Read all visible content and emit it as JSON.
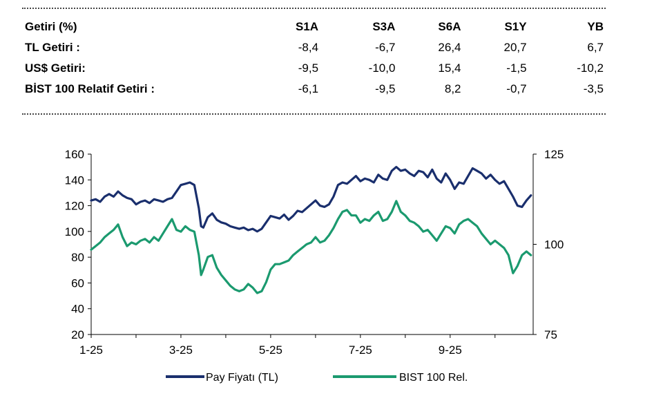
{
  "returns_table": {
    "header": [
      "Getiri (%)",
      "S1A",
      "S3A",
      "S6A",
      "S1Y",
      "YB"
    ],
    "rows": [
      {
        "label": "TL Getiri :",
        "values": [
          "-8,4",
          "-6,7",
          "26,4",
          "20,7",
          "6,7"
        ]
      },
      {
        "label": "US$ Getiri:",
        "values": [
          "-9,5",
          "-10,0",
          "15,4",
          "-1,5",
          "-10,2"
        ]
      },
      {
        "label": "BİST 100 Relatif Getiri :",
        "values": [
          "-6,1",
          "-9,5",
          "8,2",
          "-0,7",
          "-3,5"
        ]
      }
    ]
  },
  "chart_data": {
    "type": "line",
    "x_tick_labels": [
      "1-25",
      "3-25",
      "5-25",
      "7-25",
      "9-25"
    ],
    "x_range_months": [
      1,
      10.85
    ],
    "y_left": {
      "range": [
        20,
        160
      ],
      "ticks": [
        "20",
        "40",
        "60",
        "80",
        "100",
        "120",
        "140",
        "160"
      ]
    },
    "y_right": {
      "range": [
        75,
        125
      ],
      "ticks": [
        "75",
        "100",
        "125"
      ]
    },
    "legend_position": "bottom",
    "series": [
      {
        "name": "Pay Fiyatı (TL)",
        "axis": "left",
        "color": "#1a2f6d",
        "x": [
          1.0,
          1.1,
          1.2,
          1.3,
          1.4,
          1.5,
          1.6,
          1.7,
          1.8,
          1.9,
          2.0,
          2.1,
          2.2,
          2.3,
          2.4,
          2.5,
          2.6,
          2.7,
          2.8,
          2.9,
          3.0,
          3.1,
          3.2,
          3.3,
          3.4,
          3.45,
          3.5,
          3.6,
          3.7,
          3.8,
          3.9,
          4.0,
          4.1,
          4.2,
          4.3,
          4.4,
          4.5,
          4.6,
          4.7,
          4.8,
          4.9,
          5.0,
          5.1,
          5.2,
          5.3,
          5.4,
          5.5,
          5.6,
          5.7,
          5.8,
          5.9,
          6.0,
          6.1,
          6.2,
          6.3,
          6.4,
          6.5,
          6.6,
          6.7,
          6.8,
          6.9,
          7.0,
          7.1,
          7.2,
          7.3,
          7.4,
          7.5,
          7.6,
          7.7,
          7.8,
          7.9,
          8.0,
          8.1,
          8.2,
          8.3,
          8.4,
          8.5,
          8.6,
          8.7,
          8.8,
          8.9,
          9.0,
          9.1,
          9.2,
          9.3,
          9.4,
          9.5,
          9.6,
          9.7,
          9.8,
          9.9,
          10.0,
          10.1,
          10.2,
          10.3,
          10.4,
          10.5,
          10.6,
          10.7,
          10.8
        ],
        "values": [
          124,
          125,
          123,
          127,
          129,
          127,
          131,
          128,
          126,
          125,
          121,
          123,
          124,
          122,
          125,
          124,
          123,
          125,
          126,
          131,
          136,
          137,
          138,
          136,
          118,
          104,
          103,
          111,
          114,
          109,
          107,
          106,
          104,
          103,
          102,
          103,
          101,
          102,
          100,
          102,
          107,
          112,
          111,
          110,
          113,
          109,
          112,
          116,
          115,
          118,
          121,
          124,
          120,
          119,
          121,
          127,
          136,
          138,
          137,
          140,
          143,
          139,
          141,
          140,
          138,
          144,
          141,
          140,
          147,
          150,
          147,
          148,
          145,
          143,
          147,
          146,
          142,
          148,
          141,
          138,
          145,
          140,
          133,
          138,
          137,
          143,
          149,
          147,
          145,
          141,
          144,
          140,
          137,
          139,
          133,
          127,
          120,
          119,
          124,
          128
        ]
      },
      {
        "name": "BIST 100 Rel.",
        "axis": "right",
        "color": "#1b9a6f",
        "x": [
          1.0,
          1.1,
          1.2,
          1.3,
          1.4,
          1.5,
          1.6,
          1.7,
          1.8,
          1.9,
          2.0,
          2.1,
          2.2,
          2.3,
          2.4,
          2.5,
          2.6,
          2.7,
          2.8,
          2.9,
          3.0,
          3.1,
          3.2,
          3.3,
          3.4,
          3.45,
          3.5,
          3.6,
          3.7,
          3.8,
          3.9,
          4.0,
          4.1,
          4.2,
          4.3,
          4.4,
          4.5,
          4.6,
          4.7,
          4.8,
          4.9,
          5.0,
          5.1,
          5.2,
          5.3,
          5.4,
          5.5,
          5.6,
          5.7,
          5.8,
          5.9,
          6.0,
          6.1,
          6.2,
          6.3,
          6.4,
          6.5,
          6.6,
          6.7,
          6.8,
          6.9,
          7.0,
          7.1,
          7.2,
          7.3,
          7.4,
          7.5,
          7.6,
          7.7,
          7.8,
          7.9,
          8.0,
          8.1,
          8.2,
          8.3,
          8.4,
          8.5,
          8.6,
          8.7,
          8.8,
          8.9,
          9.0,
          9.1,
          9.2,
          9.3,
          9.4,
          9.5,
          9.6,
          9.7,
          9.8,
          9.9,
          10.0,
          10.1,
          10.2,
          10.3,
          10.4,
          10.5,
          10.6,
          10.7,
          10.8
        ],
        "values": [
          98.5,
          99.5,
          100.5,
          102,
          103,
          104,
          105.5,
          102,
          99.5,
          100.5,
          100,
          101,
          101.5,
          100.5,
          102,
          101,
          103,
          105,
          107,
          104,
          103.5,
          105,
          104,
          103.5,
          97,
          91.5,
          93,
          96.5,
          97,
          93.5,
          91.5,
          90,
          88.5,
          87.5,
          87,
          87.5,
          89,
          88,
          86.5,
          87,
          89.5,
          93,
          94.5,
          94.5,
          95,
          95.5,
          97,
          98,
          99,
          100,
          100.5,
          102,
          100.5,
          101,
          102.5,
          104.5,
          107,
          109,
          109.5,
          108,
          108,
          106,
          107,
          106.5,
          108,
          109,
          106.5,
          107,
          109,
          112,
          109,
          108,
          106.5,
          106,
          105,
          103.5,
          104,
          102.5,
          101,
          103,
          105,
          104.5,
          103,
          105.5,
          106.5,
          107,
          106,
          105,
          103,
          101.5,
          100,
          101,
          100,
          99,
          97,
          92,
          94,
          97,
          98,
          97
        ]
      }
    ]
  }
}
